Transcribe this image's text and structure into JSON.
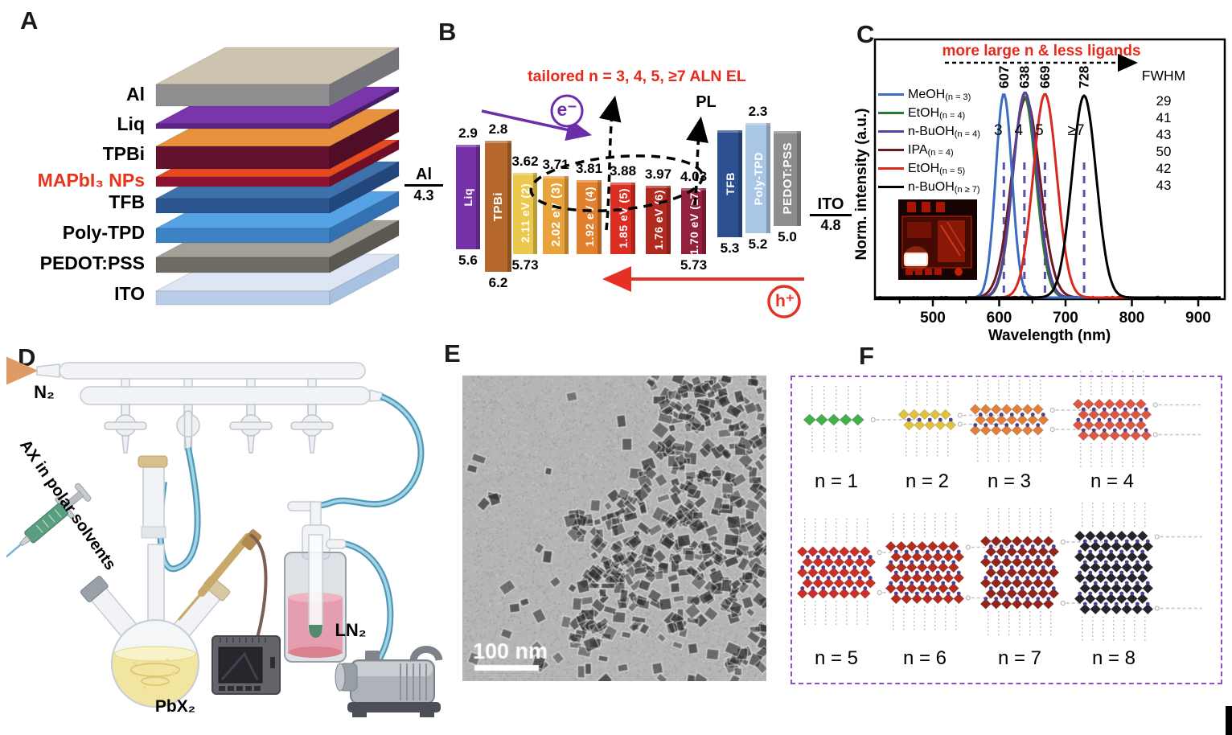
{
  "panelA": {
    "label": "A",
    "layers": [
      {
        "name": "Al",
        "text_color": "#000000",
        "top": "#cdc3ae",
        "front": "#8f8f92",
        "side": "#74747a"
      },
      {
        "name": "Liq",
        "text_color": "#000000",
        "top": "#7a35ad",
        "front": "#5c2482",
        "side": "#4a1d6b"
      },
      {
        "name": "TPBi",
        "text_color": "#000000",
        "top": "#e8923d",
        "front": "#641130",
        "side": "#500d27"
      },
      {
        "name": "MAPbI₃ NPs",
        "text_color": "#e8341c",
        "top": "#e64a21",
        "front": "#8c1230",
        "side": "#6f0e26"
      },
      {
        "name": "TFB",
        "text_color": "#000000",
        "top": "#3e71ab",
        "front": "#2b568f",
        "side": "#22477c"
      },
      {
        "name": "Poly-TPD",
        "text_color": "#000000",
        "top": "#55a3e4",
        "front": "#3d82c4",
        "side": "#3371b0"
      },
      {
        "name": "PEDOT:PSS",
        "text_color": "#000000",
        "top": "#a4a198",
        "front": "#6e6b64",
        "side": "#5b5852"
      },
      {
        "name": "ITO",
        "text_color": "#000000",
        "top": "#dde6f2",
        "front": "#b9cde9",
        "side": "#a9c1e1"
      }
    ]
  },
  "panelB": {
    "label": "B",
    "title": "tailored n = 3, 4, 5, ≥7 ALN EL",
    "electron": "e⁻",
    "hole": "h⁺",
    "pl": "PL",
    "anode": {
      "name": "Al",
      "wf": "4.3"
    },
    "cathode": {
      "name": "ITO",
      "wf": "4.8"
    },
    "accent_red": "#e8291c",
    "accent_purple": "#6a2fa8",
    "bars": [
      {
        "label": "Liq",
        "top_ev": 2.9,
        "bot_ev": 5.6,
        "top_txt": "2.9",
        "bot_txt": "5.6",
        "color": "#7632a8"
      },
      {
        "label": "TPBi",
        "top_ev": 2.8,
        "bot_ev": 6.2,
        "top_txt": "2.8",
        "bot_txt": "6.2",
        "color": "#b5672c"
      },
      {
        "label": "2.11 eV (2)",
        "top_ev": 3.62,
        "bot_ev": 5.73,
        "top_txt": "3.62",
        "bot_txt": "5.73",
        "color": "#ecc94d"
      },
      {
        "label": "2.02 eV (3)",
        "top_ev": 3.71,
        "bot_ev": 5.73,
        "top_txt": "3.71",
        "bot_txt": "",
        "color": "#e9a33d"
      },
      {
        "label": "1.92 eV (4)",
        "top_ev": 3.81,
        "bot_ev": 5.73,
        "top_txt": "3.81",
        "bot_txt": "",
        "color": "#e3802d"
      },
      {
        "label": "1.85 eV (5)",
        "top_ev": 3.88,
        "bot_ev": 5.73,
        "top_txt": "3.88",
        "bot_txt": "",
        "color": "#dc2d23"
      },
      {
        "label": "1.76 eV (6)",
        "top_ev": 3.97,
        "bot_ev": 5.73,
        "top_txt": "3.97",
        "bot_txt": "",
        "color": "#b02a20"
      },
      {
        "label": "1.70 eV (≥7)",
        "top_ev": 4.03,
        "bot_ev": 5.73,
        "top_txt": "4.03",
        "bot_txt": "5.73",
        "color": "#93203d"
      },
      {
        "label": "TFB",
        "top_ev": 2.52,
        "bot_ev": 5.3,
        "top_txt": "",
        "bot_txt": "5.3",
        "color": "#2c4f90"
      },
      {
        "label": "Poly-TPD",
        "top_ev": 2.34,
        "bot_ev": 5.2,
        "top_txt": "2.3",
        "bot_txt": "5.2",
        "color": "#a9c6e4"
      },
      {
        "label": "PEDOT:PSS",
        "top_ev": 2.55,
        "bot_ev": 5.0,
        "top_txt": "",
        "bot_txt": "5.0",
        "color": "#8d8d8f"
      }
    ]
  },
  "panelC": {
    "label": "C"
  },
  "chart_data": {
    "type": "line",
    "title": "",
    "xlabel": "Wavelength (nm)",
    "ylabel": "Norm. intensity (a.u.)",
    "annotation": "more large n & less ligands",
    "fwhm_header": "FWHM",
    "xlim": [
      413,
      938
    ],
    "xticks": [
      500,
      600,
      700,
      800,
      900
    ],
    "minor_xticks": [
      450,
      550,
      650,
      750,
      850
    ],
    "guide_color": "#5a51a8",
    "series": [
      {
        "name": "MeOH",
        "sub": "(n = 3)",
        "color": "#3c6cc0",
        "peak": 607,
        "fwhm": 29,
        "peak_label": "607",
        "n_label": "3"
      },
      {
        "name": "EtOH",
        "sub": "(n = 4)",
        "color": "#2a7a33",
        "peak": 638,
        "fwhm": 41,
        "peak_label": "638",
        "n_label": "4"
      },
      {
        "name": "n-BuOH",
        "sub": "(n = 4)",
        "color": "#59419b",
        "peak": 639,
        "fwhm": 43,
        "peak_label": "",
        "n_label": ""
      },
      {
        "name": "IPA",
        "sub": "(n = 4)",
        "color": "#6b1a1e",
        "peak": 640,
        "fwhm": 50,
        "peak_label": "",
        "n_label": ""
      },
      {
        "name": "EtOH",
        "sub": "(n = 5)",
        "color": "#d8281f",
        "peak": 669,
        "fwhm": 42,
        "peak_label": "669",
        "n_label": "5"
      },
      {
        "name": "n-BuOH",
        "sub": "(n ≥ 7)",
        "color": "#000000",
        "peak": 728,
        "fwhm": 43,
        "peak_label": "728",
        "n_label": "≥7"
      }
    ],
    "guides": [
      607,
      638,
      669,
      728
    ]
  },
  "panelD": {
    "label": "D",
    "n2_label": "N₂",
    "syringe_label": "AX in polar solvents",
    "flask_label": "PbX₂",
    "ln2_label": "LN₂"
  },
  "panelE": {
    "label": "E",
    "scale_label": "100 nm"
  },
  "panelF": {
    "label": "F",
    "dot_color": "#4a3f93",
    "groups": [
      {
        "label": "n = 1",
        "n": 1,
        "color": "#44b049",
        "cols": 5
      },
      {
        "label": "n = 2",
        "n": 2,
        "color": "#e2c23c",
        "cols": 5
      },
      {
        "label": "n = 3",
        "n": 3,
        "color": "#e2803a",
        "cols": 7
      },
      {
        "label": "n = 4",
        "n": 4,
        "color": "#dd5742",
        "cols": 7
      },
      {
        "label": "n = 5",
        "n": 5,
        "color": "#cd2f26",
        "cols": 7
      },
      {
        "label": "n = 6",
        "n": 6,
        "color": "#b62c1f",
        "cols": 7
      },
      {
        "label": "n = 7",
        "n": 7,
        "color": "#93251a",
        "cols": 7
      },
      {
        "label": "n = 8",
        "n": 8,
        "color": "#24242a",
        "cols": 7
      }
    ]
  }
}
